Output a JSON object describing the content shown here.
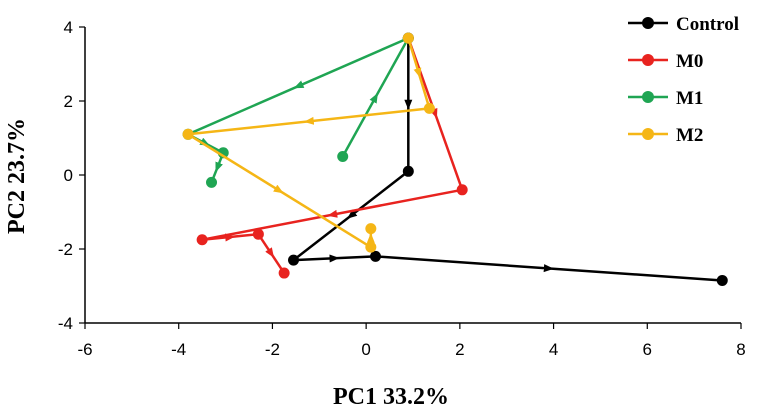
{
  "chart_data": {
    "type": "line",
    "xlabel": "PC1 33.2%",
    "ylabel": "PC2 23.7%",
    "xlim": [
      -6,
      8
    ],
    "ylim": [
      -4,
      4
    ],
    "xticks": [
      -6,
      -4,
      -2,
      0,
      2,
      4,
      6,
      8
    ],
    "yticks": [
      -4,
      -2,
      0,
      2,
      4
    ],
    "grid": false,
    "legend_position": "top-right",
    "series": [
      {
        "name": "Control",
        "color": "#000000",
        "points": [
          [
            0.9,
            3.7
          ],
          [
            0.9,
            0.1
          ],
          [
            -1.55,
            -2.3
          ],
          [
            0.2,
            -2.2
          ],
          [
            7.6,
            -2.85
          ]
        ]
      },
      {
        "name": "M0",
        "color": "#e8231f",
        "points": [
          [
            0.9,
            3.7
          ],
          [
            2.05,
            -0.4
          ],
          [
            -3.5,
            -1.75
          ],
          [
            -2.3,
            -1.6
          ],
          [
            -1.75,
            -2.65
          ]
        ]
      },
      {
        "name": "M1",
        "color": "#1fa553",
        "points": [
          [
            -0.5,
            0.5
          ],
          [
            0.9,
            3.7
          ],
          [
            -3.8,
            1.1
          ],
          [
            -3.05,
            0.6
          ],
          [
            -3.3,
            -0.2
          ]
        ]
      },
      {
        "name": "M2",
        "color": "#f5b616",
        "points": [
          [
            0.9,
            3.7
          ],
          [
            1.35,
            1.8
          ],
          [
            -3.8,
            1.1
          ],
          [
            0.1,
            -1.95
          ],
          [
            0.1,
            -1.45
          ]
        ]
      }
    ]
  }
}
